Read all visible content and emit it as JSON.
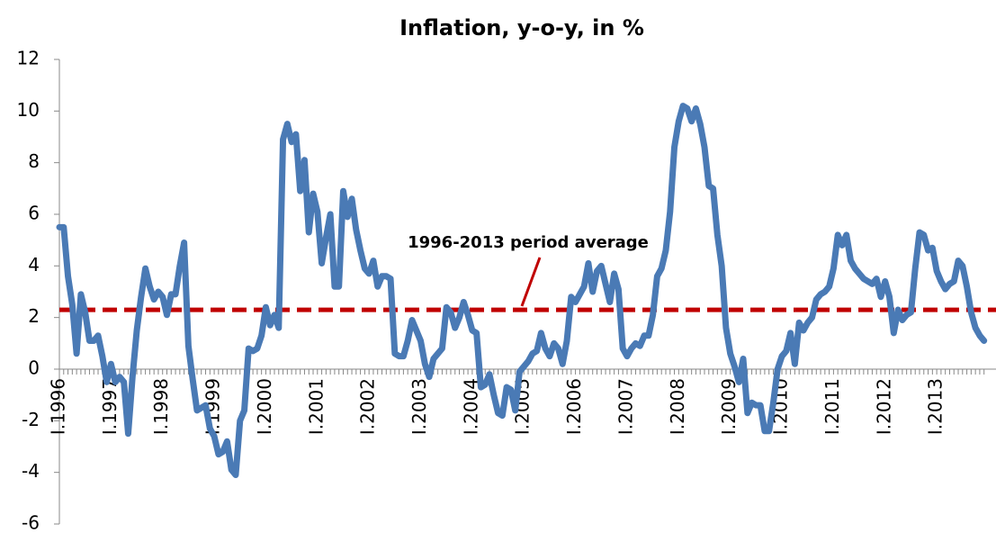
{
  "chart_data": {
    "type": "line",
    "title": "Inflation, y-o-y, in %",
    "categories": [
      "I.1996",
      null,
      null,
      null,
      null,
      null,
      null,
      null,
      null,
      null,
      null,
      null,
      "I.1997",
      null,
      null,
      null,
      null,
      null,
      null,
      null,
      null,
      null,
      null,
      null,
      "I.1998",
      null,
      null,
      null,
      null,
      null,
      null,
      null,
      null,
      null,
      null,
      null,
      "I.1999",
      null,
      null,
      null,
      null,
      null,
      null,
      null,
      null,
      null,
      null,
      null,
      "I.2000",
      null,
      null,
      null,
      null,
      null,
      null,
      null,
      null,
      null,
      null,
      null,
      "I.2001",
      null,
      null,
      null,
      null,
      null,
      null,
      null,
      null,
      null,
      null,
      null,
      "I.2002",
      null,
      null,
      null,
      null,
      null,
      null,
      null,
      null,
      null,
      null,
      null,
      "I.2003",
      null,
      null,
      null,
      null,
      null,
      null,
      null,
      null,
      null,
      null,
      null,
      "I.2004",
      null,
      null,
      null,
      null,
      null,
      null,
      null,
      null,
      null,
      null,
      null,
      "I.2005",
      null,
      null,
      null,
      null,
      null,
      null,
      null,
      null,
      null,
      null,
      null,
      "I.2006",
      null,
      null,
      null,
      null,
      null,
      null,
      null,
      null,
      null,
      null,
      null,
      "I.2007",
      null,
      null,
      null,
      null,
      null,
      null,
      null,
      null,
      null,
      null,
      null,
      "I.2008",
      null,
      null,
      null,
      null,
      null,
      null,
      null,
      null,
      null,
      null,
      null,
      "I.2009",
      null,
      null,
      null,
      null,
      null,
      null,
      null,
      null,
      null,
      null,
      null,
      "I.2010",
      null,
      null,
      null,
      null,
      null,
      null,
      null,
      null,
      null,
      null,
      null,
      "I.2011",
      null,
      null,
      null,
      null,
      null,
      null,
      null,
      null,
      null,
      null,
      null,
      "I.2012",
      null,
      null,
      null,
      null,
      null,
      null,
      null,
      null,
      null,
      null,
      null,
      "I.2013",
      null,
      null,
      null,
      null,
      null,
      null,
      null,
      null,
      null,
      null,
      null
    ],
    "series": [
      {
        "color": "#4a7ab5",
        "values": [
          5.5,
          5.5,
          3.6,
          2.5,
          0.6,
          2.9,
          2.2,
          1.1,
          1.1,
          1.3,
          0.5,
          -0.5,
          0.2,
          -0.5,
          -0.3,
          -0.5,
          -2.5,
          -0.3,
          1.5,
          2.8,
          3.9,
          3.2,
          2.7,
          3.0,
          2.8,
          2.1,
          2.9,
          2.9,
          4.0,
          4.9,
          0.9,
          -0.4,
          -1.6,
          -1.5,
          -1.4,
          -2.3,
          -2.6,
          -3.3,
          -3.2,
          -2.8,
          -3.9,
          -4.1,
          -2.0,
          -1.6,
          0.8,
          0.7,
          0.8,
          1.3,
          2.4,
          1.7,
          2.1,
          1.6,
          8.9,
          9.5,
          8.8,
          9.1,
          6.9,
          8.1,
          5.3,
          6.8,
          6.1,
          4.1,
          5.1,
          6.0,
          3.2,
          3.2,
          6.9,
          5.9,
          6.6,
          5.4,
          4.6,
          3.9,
          3.7,
          4.2,
          3.2,
          3.6,
          3.6,
          3.5,
          0.6,
          0.5,
          0.5,
          1.1,
          1.9,
          1.5,
          1.1,
          0.2,
          -0.3,
          0.4,
          0.6,
          0.8,
          2.4,
          2.2,
          1.6,
          2.0,
          2.6,
          2.1,
          1.5,
          1.4,
          -0.7,
          -0.6,
          -0.2,
          -1.0,
          -1.7,
          -1.8,
          -0.7,
          -0.8,
          -1.6,
          -0.1,
          0.1,
          0.3,
          0.6,
          0.7,
          1.4,
          0.8,
          0.5,
          1.0,
          0.8,
          0.2,
          1.1,
          2.8,
          2.6,
          2.9,
          3.2,
          4.1,
          3.0,
          3.8,
          4.0,
          3.3,
          2.6,
          3.7,
          3.1,
          0.8,
          0.5,
          0.8,
          1.0,
          0.9,
          1.3,
          1.3,
          2.1,
          3.6,
          3.9,
          4.6,
          6.1,
          8.6,
          9.6,
          10.2,
          10.1,
          9.6,
          10.1,
          9.5,
          8.6,
          7.1,
          7.0,
          5.2,
          4.0,
          1.6,
          0.6,
          0.1,
          -0.5,
          0.4,
          -1.7,
          -1.3,
          -1.4,
          -1.4,
          -2.4,
          -2.4,
          -1.3,
          0.0,
          0.5,
          0.7,
          1.4,
          0.2,
          1.8,
          1.5,
          1.8,
          2.0,
          2.7,
          2.9,
          3.0,
          3.2,
          3.9,
          5.2,
          4.8,
          5.2,
          4.2,
          3.9,
          3.7,
          3.5,
          3.4,
          3.3,
          3.5,
          2.8,
          3.4,
          2.8,
          1.4,
          2.3,
          1.9,
          2.1,
          2.2,
          3.9,
          5.3,
          5.2,
          4.6,
          4.7,
          3.8,
          3.4,
          3.1,
          3.3,
          3.4,
          4.2,
          4.0,
          3.2,
          2.2,
          1.6,
          1.3,
          1.1
        ]
      }
    ],
    "reference_line": {
      "label": "1996-2013 period average",
      "value": 2.3,
      "color": "#c00000"
    },
    "ylim": [
      -6,
      12
    ],
    "yticks": [
      -6,
      -4,
      -2,
      0,
      2,
      4,
      6,
      8,
      10,
      12
    ],
    "grid": false
  }
}
